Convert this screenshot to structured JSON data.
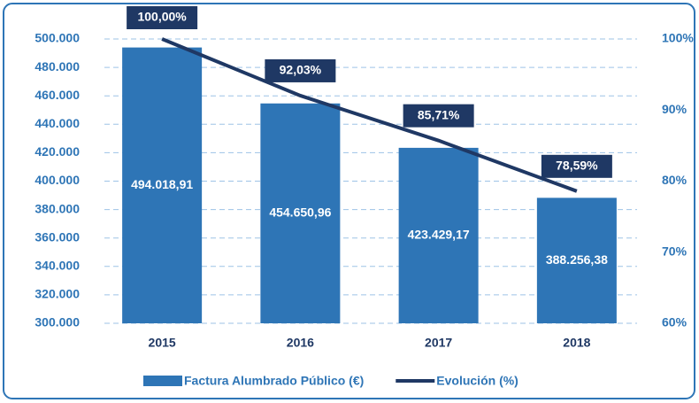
{
  "chart_data": {
    "type": "bar",
    "categories": [
      "2015",
      "2016",
      "2017",
      "2018"
    ],
    "series": [
      {
        "name": "Factura Alumbrado Público (€)",
        "type": "bar",
        "color": "#2e75b6",
        "values": [
          494018.91,
          454650.96,
          423429.17,
          388256.38
        ],
        "value_labels": [
          "494.018,91",
          "454.650,96",
          "423.429,17",
          "388.256,38"
        ]
      },
      {
        "name": "Evolución (%)",
        "type": "line",
        "axis": "y2",
        "color": "#1f3864",
        "values": [
          100,
          92.03,
          85.71,
          78.59
        ],
        "value_labels": [
          "100,00%",
          "92,03%",
          "85,71%",
          "78,59%"
        ]
      }
    ],
    "ylim": [
      300000,
      500000
    ],
    "yticks": [
      {
        "value": 300000,
        "label": "300.000"
      },
      {
        "value": 320000,
        "label": "320.000"
      },
      {
        "value": 340000,
        "label": "340.000"
      },
      {
        "value": 360000,
        "label": "360.000"
      },
      {
        "value": 380000,
        "label": "380.000"
      },
      {
        "value": 400000,
        "label": "400.000"
      },
      {
        "value": 420000,
        "label": "420.000"
      },
      {
        "value": 440000,
        "label": "440.000"
      },
      {
        "value": 460000,
        "label": "460.000"
      },
      {
        "value": 480000,
        "label": "480.000"
      },
      {
        "value": 500000,
        "label": "500.000"
      }
    ],
    "y2lim": [
      60,
      100
    ],
    "y2ticks": [
      {
        "value": 60,
        "label": "60%"
      },
      {
        "value": 70,
        "label": "70%"
      },
      {
        "value": 80,
        "label": "80%"
      },
      {
        "value": 90,
        "label": "90%"
      },
      {
        "value": 100,
        "label": "100%"
      }
    ],
    "grid": true,
    "legend": "bottom"
  }
}
